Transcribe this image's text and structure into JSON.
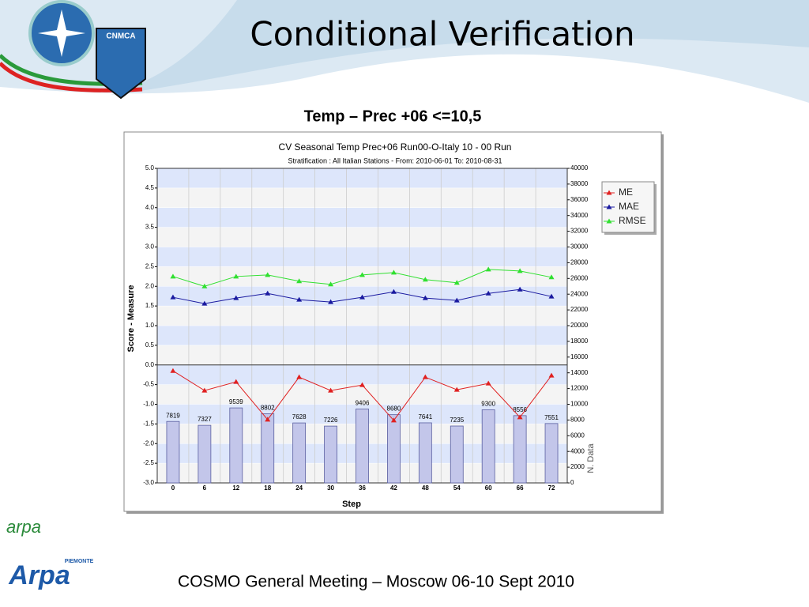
{
  "slide": {
    "title": "Conditional Verification",
    "subtitle": "Temp – Prec +06 <=10,5",
    "footer": "COSMO General Meeting – Moscow 06-10 Sept 2010",
    "logos": [
      "CNMCA",
      "arpa",
      "Arpa",
      "PIEMONTE"
    ]
  },
  "chart_data": {
    "type": "line",
    "title": "CV Seasonal Temp Prec+06 Run00-O-Italy 10 - 00 Run",
    "subtitle": "Stratification : All Italian Stations - From: 2010-06-01 To: 2010-08-31",
    "xlabel": "Step",
    "ylabel": "Score - Measure",
    "y2label": "N. Data",
    "categories": [
      "0",
      "6",
      "12",
      "18",
      "24",
      "30",
      "36",
      "42",
      "48",
      "54",
      "60",
      "66",
      "72"
    ],
    "ylim": [
      -3,
      5
    ],
    "yticks": [
      {
        "value": 5,
        "label": "5.0"
      },
      4.5,
      {
        "value": 4,
        "label": "4.0"
      },
      3.5,
      {
        "value": 3,
        "label": "3.0"
      },
      2.5,
      {
        "value": 2,
        "label": "2.0"
      },
      1.5,
      {
        "value": 1,
        "label": "1.0"
      },
      0.5,
      {
        "value": 0,
        "label": "0.0"
      },
      -0.5,
      {
        "value": -1,
        "label": "-1.0"
      },
      -1.5,
      {
        "value": -2,
        "label": "-2.0"
      },
      -2.5,
      {
        "value": -3,
        "label": "-3.0"
      }
    ],
    "y2lim": [
      0,
      40000
    ],
    "y2ticks": [
      40000,
      38000,
      36000,
      34000,
      32000,
      30000,
      28000,
      26000,
      24000,
      22000,
      20000,
      18000,
      16000,
      14000,
      12000,
      10000,
      8000,
      6000,
      4000,
      2000,
      0
    ],
    "grid": true,
    "legend": "right",
    "series": [
      {
        "name": "ME",
        "color": "#e02020",
        "values": [
          -0.15,
          -0.65,
          -0.43,
          -1.39,
          -0.31,
          -0.65,
          -0.51,
          -1.41,
          -0.31,
          -0.63,
          -0.47,
          -1.33,
          -0.27
        ]
      },
      {
        "name": "MAE",
        "color": "#1a1aa0",
        "values": [
          1.72,
          1.56,
          1.7,
          1.82,
          1.66,
          1.6,
          1.72,
          1.86,
          1.7,
          1.64,
          1.82,
          1.92,
          1.74
        ]
      },
      {
        "name": "RMSE",
        "color": "#30e030",
        "values": [
          2.25,
          2.0,
          2.25,
          2.29,
          2.13,
          2.05,
          2.29,
          2.35,
          2.17,
          2.09,
          2.43,
          2.39,
          2.23
        ]
      },
      {
        "type": "bar",
        "axis": "y2",
        "color": "#c3c6ea",
        "values": [
          7819,
          7327,
          9539,
          8802,
          7628,
          7226,
          9406,
          8680,
          7641,
          7235,
          9300,
          8556,
          7551
        ]
      }
    ]
  }
}
